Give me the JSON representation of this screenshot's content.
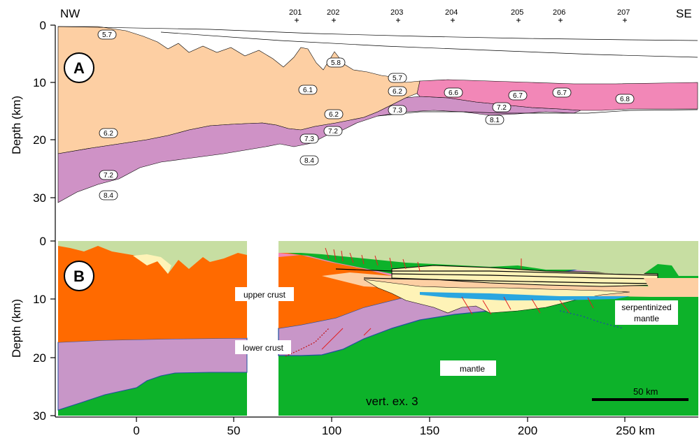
{
  "top_labels": {
    "left": "NW",
    "right": "SE"
  },
  "stations": [
    "201",
    "202",
    "203",
    "204",
    "205",
    "206",
    "207"
  ],
  "panel_a": {
    "letter": "A",
    "ylabel": "Depth (km)",
    "yticks": [
      "0",
      "10",
      "20",
      "30"
    ],
    "velocities": [
      "5.7",
      "5.8",
      "5.7",
      "6.1",
      "6.2",
      "6.6",
      "6.7",
      "6.7",
      "6.8",
      "6.2",
      "7.3",
      "7.2",
      "8.1",
      "6.2",
      "7.2",
      "7.3",
      "8.4",
      "7.2",
      "8.4"
    ]
  },
  "panel_b": {
    "letter": "B",
    "ylabel": "Depth (km)",
    "yticks": [
      "0",
      "10",
      "20",
      "30"
    ],
    "labels": {
      "upper_crust": "upper crust",
      "lower_crust": "lower crust",
      "mantle": "mantle",
      "serpentinized": "serpentinized\nmantle",
      "serp_line1": "serpentinized",
      "serp_line2": "mantle"
    },
    "vert_ex": "vert. ex. 3",
    "scale_bar": "50 km"
  },
  "x_axis": {
    "ticks": [
      "0",
      "50",
      "100",
      "150",
      "200",
      "250 km"
    ]
  },
  "colors": {
    "orange": "#fdcfa3",
    "purple": "#cf92c6",
    "pink": "#f287b7",
    "deep_orange": "#ff6a00",
    "lavender": "#c896c8",
    "green": "#0db22a",
    "pale_green": "#c7dea2",
    "pale_yellow": "#fef3b7"
  }
}
